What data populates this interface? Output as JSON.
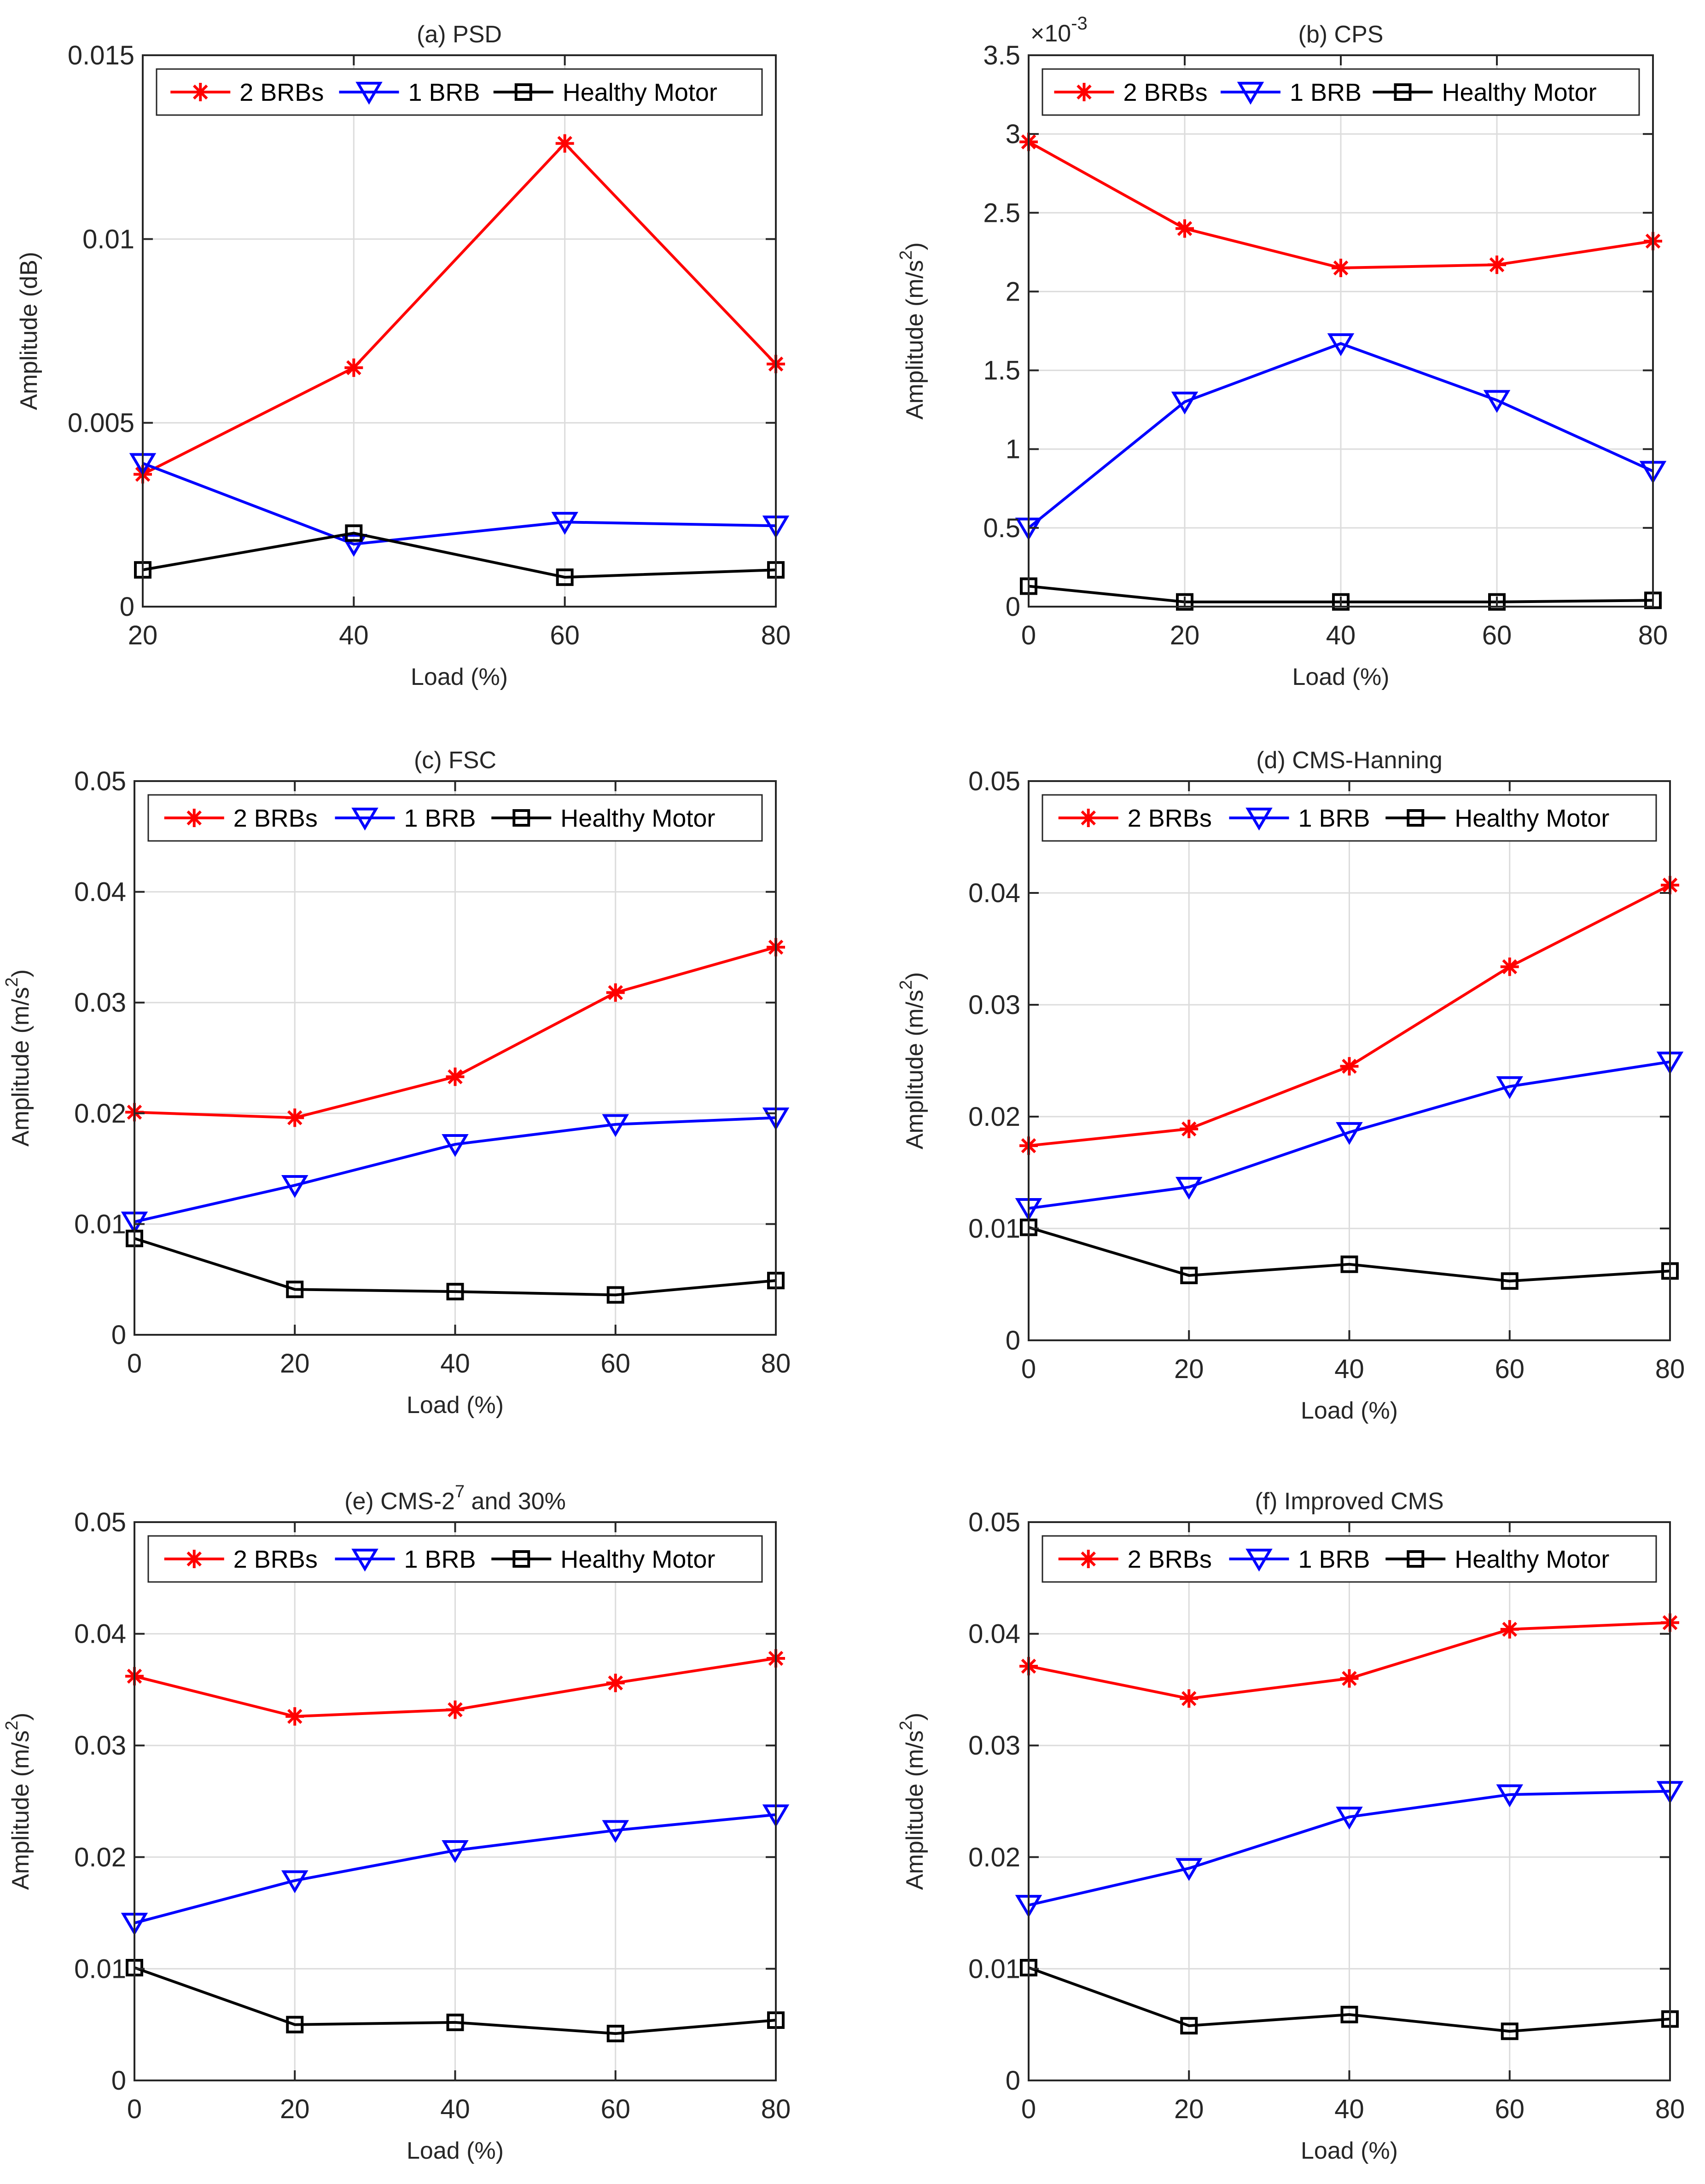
{
  "chart_data": [
    {
      "id": "a",
      "type": "line",
      "title": "(a) PSD",
      "xlabel": "Load (%)",
      "ylabel": "Amplitude (dB)",
      "x": [
        20,
        40,
        60,
        80
      ],
      "xlim": [
        20,
        80
      ],
      "ylim": [
        0,
        0.015
      ],
      "xticks": [
        20,
        40,
        60,
        80
      ],
      "yticks": [
        0,
        0.005,
        0.01,
        0.015
      ],
      "ytick_labels": [
        "0",
        "0.005",
        "0.01",
        "0.015"
      ],
      "grid": true,
      "legend_position": "top",
      "series": [
        {
          "name": "2 BRBs",
          "color": "#ff0000",
          "marker": "asterisk",
          "values": [
            0.0036,
            0.0065,
            0.0126,
            0.0066
          ]
        },
        {
          "name": "1 BRB",
          "color": "#0000ff",
          "marker": "triangle-down",
          "values": [
            0.0039,
            0.0017,
            0.0023,
            0.0022
          ]
        },
        {
          "name": "Healthy Motor",
          "color": "#000000",
          "marker": "square",
          "values": [
            0.001,
            0.002,
            0.0008,
            0.001
          ]
        }
      ]
    },
    {
      "id": "b",
      "type": "line",
      "title": "(b) CPS",
      "xlabel": "Load (%)",
      "ylabel_main": "Amplitude (m/s",
      "ylabel_sup": "2",
      "ylabel_end": ")",
      "scale_base": "×10",
      "scale_exp": "-3",
      "x": [
        0,
        20,
        40,
        60,
        80
      ],
      "xlim": [
        0,
        80
      ],
      "ylim": [
        0,
        3.5
      ],
      "xticks": [
        0,
        20,
        40,
        60,
        80
      ],
      "yticks": [
        0,
        0.5,
        1,
        1.5,
        2,
        2.5,
        3,
        3.5
      ],
      "ytick_labels": [
        "0",
        "0.5",
        "1",
        "1.5",
        "2",
        "2.5",
        "3",
        "3.5"
      ],
      "grid": true,
      "legend_position": "top",
      "series": [
        {
          "name": "2 BRBs",
          "color": "#ff0000",
          "marker": "asterisk",
          "values": [
            2.95,
            2.4,
            2.15,
            2.17,
            2.32
          ]
        },
        {
          "name": "1 BRB",
          "color": "#0000ff",
          "marker": "triangle-down",
          "values": [
            0.5,
            1.3,
            1.67,
            1.31,
            0.86
          ]
        },
        {
          "name": "Healthy Motor",
          "color": "#000000",
          "marker": "square",
          "values": [
            0.13,
            0.03,
            0.03,
            0.03,
            0.04
          ]
        }
      ]
    },
    {
      "id": "c",
      "type": "line",
      "title": "(c) FSC",
      "xlabel": "Load (%)",
      "ylabel_main": "Amplitude (m/s",
      "ylabel_sup": "2",
      "ylabel_end": ")",
      "x": [
        0,
        20,
        40,
        60,
        80
      ],
      "xlim": [
        0,
        80
      ],
      "ylim": [
        0,
        0.05
      ],
      "xticks": [
        0,
        20,
        40,
        60,
        80
      ],
      "yticks": [
        0,
        0.01,
        0.02,
        0.03,
        0.04,
        0.05
      ],
      "ytick_labels": [
        "0",
        "0.01",
        "0.02",
        "0.03",
        "0.04",
        "0.05"
      ],
      "grid": true,
      "legend_position": "top",
      "series": [
        {
          "name": "2 BRBs",
          "color": "#ff0000",
          "marker": "asterisk",
          "values": [
            0.0201,
            0.0196,
            0.0233,
            0.0309,
            0.035
          ]
        },
        {
          "name": "1 BRB",
          "color": "#0000ff",
          "marker": "triangle-down",
          "values": [
            0.0102,
            0.0135,
            0.0172,
            0.019,
            0.0196
          ]
        },
        {
          "name": "Healthy Motor",
          "color": "#000000",
          "marker": "square",
          "values": [
            0.0087,
            0.0041,
            0.0039,
            0.0036,
            0.0049
          ]
        }
      ]
    },
    {
      "id": "d",
      "type": "line",
      "title": "(d) CMS-Hanning",
      "xlabel": "Load (%)",
      "ylabel_main": "Amplitude (m/s",
      "ylabel_sup": "2",
      "ylabel_end": ")",
      "x": [
        0,
        20,
        40,
        60,
        80
      ],
      "xlim": [
        0,
        80
      ],
      "ylim": [
        0,
        0.05
      ],
      "xticks": [
        0,
        20,
        40,
        60,
        80
      ],
      "yticks": [
        0,
        0.01,
        0.02,
        0.03,
        0.04,
        0.05
      ],
      "ytick_labels": [
        "0",
        "0.01",
        "0.02",
        "0.03",
        "0.04",
        "0.05"
      ],
      "grid": true,
      "legend_position": "top",
      "series": [
        {
          "name": "2 BRBs",
          "color": "#ff0000",
          "marker": "asterisk",
          "values": [
            0.0174,
            0.0189,
            0.0245,
            0.0334,
            0.0407
          ]
        },
        {
          "name": "1 BRB",
          "color": "#0000ff",
          "marker": "triangle-down",
          "values": [
            0.0118,
            0.0137,
            0.0186,
            0.0227,
            0.0249
          ]
        },
        {
          "name": "Healthy Motor",
          "color": "#000000",
          "marker": "square",
          "values": [
            0.0101,
            0.0058,
            0.0068,
            0.0053,
            0.0062
          ]
        }
      ]
    },
    {
      "id": "e",
      "type": "line",
      "title_main": "(e) CMS-2",
      "title_sup": "7",
      "title_end": " and 30%",
      "xlabel": "Load (%)",
      "ylabel_main": "Amplitude (m/s",
      "ylabel_sup": "2",
      "ylabel_end": ")",
      "x": [
        0,
        20,
        40,
        60,
        80
      ],
      "xlim": [
        0,
        80
      ],
      "ylim": [
        0,
        0.05
      ],
      "xticks": [
        0,
        20,
        40,
        60,
        80
      ],
      "yticks": [
        0,
        0.01,
        0.02,
        0.03,
        0.04,
        0.05
      ],
      "ytick_labels": [
        "0",
        "0.01",
        "0.02",
        "0.03",
        "0.04",
        "0.05"
      ],
      "grid": true,
      "legend_position": "top",
      "series": [
        {
          "name": "2 BRBs",
          "color": "#ff0000",
          "marker": "asterisk",
          "values": [
            0.0362,
            0.0326,
            0.0332,
            0.0356,
            0.0378
          ]
        },
        {
          "name": "1 BRB",
          "color": "#0000ff",
          "marker": "triangle-down",
          "values": [
            0.0141,
            0.0179,
            0.0206,
            0.0224,
            0.0238
          ]
        },
        {
          "name": "Healthy Motor",
          "color": "#000000",
          "marker": "square",
          "values": [
            0.0101,
            0.005,
            0.0052,
            0.0042,
            0.0054
          ]
        }
      ]
    },
    {
      "id": "f",
      "type": "line",
      "title": "(f) Improved CMS",
      "xlabel": "Load (%)",
      "ylabel_main": "Amplitude (m/s",
      "ylabel_sup": "2",
      "ylabel_end": ")",
      "x": [
        0,
        20,
        40,
        60,
        80
      ],
      "xlim": [
        0,
        80
      ],
      "ylim": [
        0,
        0.05
      ],
      "xticks": [
        0,
        20,
        40,
        60,
        80
      ],
      "yticks": [
        0,
        0.01,
        0.02,
        0.03,
        0.04,
        0.05
      ],
      "ytick_labels": [
        "0",
        "0.01",
        "0.02",
        "0.03",
        "0.04",
        "0.05"
      ],
      "grid": true,
      "legend_position": "top",
      "series": [
        {
          "name": "2 BRBs",
          "color": "#ff0000",
          "marker": "asterisk",
          "values": [
            0.0371,
            0.0342,
            0.036,
            0.0404,
            0.041
          ]
        },
        {
          "name": "1 BRB",
          "color": "#0000ff",
          "marker": "triangle-down",
          "values": [
            0.0157,
            0.019,
            0.0236,
            0.0256,
            0.0259
          ]
        },
        {
          "name": "Healthy Motor",
          "color": "#000000",
          "marker": "square",
          "values": [
            0.0101,
            0.0049,
            0.0059,
            0.0044,
            0.0055
          ]
        }
      ]
    }
  ]
}
